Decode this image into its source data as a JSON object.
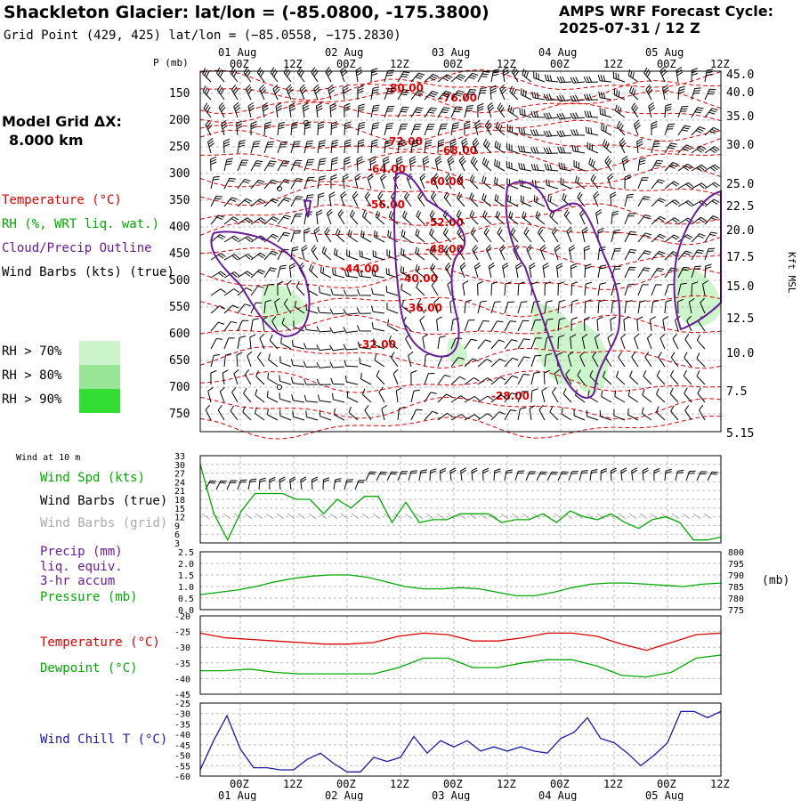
{
  "header": {
    "title": "Shackleton Glacier:  lat/lon = (-85.0800, -175.3800)",
    "subtitle": "Grid Point (429, 425) lat/lon = (−85.0558, −175.2830)",
    "cycle_line1": "AMPS WRF Forecast Cycle:",
    "cycle_line2": "2025-07-31 / 12  Z",
    "grid_line1": "Model Grid ΔX:",
    "grid_line2": "8.000 km"
  },
  "legend": {
    "temperature": "Temperature (°C)",
    "rh": "RH (%, WRT liq. wat.)",
    "cloud": "Cloud/Precip Outline",
    "wind": "Wind Barbs (kts) (true)",
    "rh70": "RH > 70%",
    "rh80": "RH > 80%",
    "rh90": "RH > 90%",
    "wind10m": "Wind at 10 m",
    "wind_spd": "Wind Spd (kts)",
    "wind_barbs_true": "Wind Barbs (true)",
    "wind_barbs_grid": "Wind Barbs (grid)",
    "precip1": "Precip (mm)",
    "precip2": "liq. equiv.",
    "precip3": "3-hr accum",
    "pressure": "Pressure (mb)",
    "temp2": "Temperature (°C)",
    "dewpoint": "Dewpoint (°C)",
    "windchill": "Wind Chill T (°C)"
  },
  "colors": {
    "temperature": "#dd0000",
    "rh": "#00aa00",
    "cloud": "#6a1b9a",
    "windchill": "#1a1aaa",
    "rh70": "#ccf5cc",
    "rh80": "#99e699",
    "rh90": "#33dd33",
    "grid_barbs": "#aaaaaa"
  },
  "time_axis": {
    "hour_labels": [
      "00Z",
      "12Z",
      "00Z",
      "12Z",
      "00Z",
      "12Z",
      "00Z",
      "12Z",
      "00Z",
      "12Z"
    ],
    "date_labels": [
      "01 Aug",
      "02 Aug",
      "03 Aug",
      "04 Aug",
      "05 Aug"
    ]
  },
  "chart_data": [
    {
      "type": "line",
      "panel": "cross-section",
      "xlabel": "",
      "ylabel": "P (mb)",
      "y_ticks": [
        150,
        200,
        250,
        300,
        350,
        400,
        450,
        500,
        550,
        600,
        650,
        700,
        750
      ],
      "y_right_label": "Kft MSL",
      "y_right_ticks": [
        "45.0",
        "40.0",
        "35.0",
        "30.0",
        "25.0",
        "22.5",
        "20.0",
        "17.5",
        "15.0",
        "12.5",
        "10.0",
        "7.5",
        "5.15"
      ],
      "temperature_contour_labels": [
        "-80.00",
        "-76.00",
        "-72.00",
        "-68.00",
        "-64.00",
        "-60.00",
        "-56.00",
        "-52.00",
        "-48.00",
        "-44.00",
        "-40.00",
        "-36.00",
        "-32.00",
        "-28.00"
      ],
      "grid": true
    },
    {
      "type": "line",
      "panel": "wind-10m",
      "y_ticks": [
        "33",
        "30",
        "27",
        "24",
        "21",
        "18",
        "15",
        "12",
        "9",
        "6",
        "3"
      ],
      "ylim": [
        3,
        33
      ],
      "series": [
        {
          "name": "Wind Spd (kts)",
          "values": [
            30,
            13,
            4,
            14,
            20,
            20,
            20,
            18,
            18,
            13,
            18,
            15,
            19,
            19,
            10,
            17,
            10,
            11,
            11,
            13,
            13,
            13,
            10,
            11,
            11,
            13,
            10,
            14,
            12,
            11,
            13,
            10,
            8,
            11,
            12,
            10,
            4,
            4,
            5
          ]
        }
      ]
    },
    {
      "type": "line",
      "panel": "precip-pressure",
      "y_ticks": [
        "2.5",
        "2.0",
        "1.5",
        "1.0",
        "0.5",
        "0.0"
      ],
      "ylim": [
        0,
        2.5
      ],
      "y_right_ticks": [
        "800",
        "795",
        "790",
        "785",
        "780",
        "775"
      ],
      "y_right_unit": "(mb)",
      "y_right_lim": [
        775,
        800
      ],
      "series": [
        {
          "name": "Pressure (mb)",
          "axis": "right",
          "values": [
            781.5,
            782.5,
            783.5,
            785,
            787,
            788.5,
            789.5,
            790,
            790,
            789,
            787,
            785,
            784,
            784,
            784.5,
            784,
            782.5,
            781,
            781,
            782.5,
            784.5,
            786,
            786.5,
            786.5,
            786,
            785.5,
            785,
            786,
            786.5
          ]
        }
      ]
    },
    {
      "type": "line",
      "panel": "temp-dewpoint",
      "y_ticks": [
        "-20",
        "-25",
        "-30",
        "-35",
        "-40",
        "-45"
      ],
      "ylim": [
        -45,
        -20
      ],
      "series": [
        {
          "name": "Temperature (°C)",
          "values": [
            -25.5,
            -27,
            -27.5,
            -28,
            -28.5,
            -29,
            -29,
            -28.5,
            -26.5,
            -25.5,
            -26,
            -28,
            -28,
            -27,
            -25.5,
            -25.5,
            -26.5,
            -29,
            -31,
            -28.5,
            -26,
            -25.5
          ]
        },
        {
          "name": "Dewpoint (°C)",
          "values": [
            -37.5,
            -37.5,
            -37,
            -38,
            -38.5,
            -38.5,
            -38.5,
            -38.5,
            -36.5,
            -33.5,
            -33.5,
            -36.5,
            -36.5,
            -35,
            -34,
            -34,
            -36,
            -39,
            -39.5,
            -38,
            -33.5,
            -32.5
          ]
        }
      ]
    },
    {
      "type": "line",
      "panel": "wind-chill",
      "y_ticks": [
        "-25",
        "-30",
        "-35",
        "-40",
        "-45",
        "-50",
        "-55",
        "-60"
      ],
      "ylim": [
        -60,
        -25
      ],
      "series": [
        {
          "name": "Wind Chill T (°C)",
          "values": [
            -57,
            -43,
            -31,
            -47,
            -56,
            -56,
            -57,
            -57,
            -52,
            -49,
            -54,
            -58,
            -58,
            -51,
            -53,
            -51,
            -41,
            -49,
            -43,
            -46,
            -43,
            -48,
            -46,
            -48,
            -46,
            -48,
            -49,
            -42,
            -39,
            -32,
            -42,
            -44,
            -49,
            -55,
            -50,
            -44,
            -29,
            -29,
            -32,
            -29
          ]
        }
      ]
    }
  ]
}
